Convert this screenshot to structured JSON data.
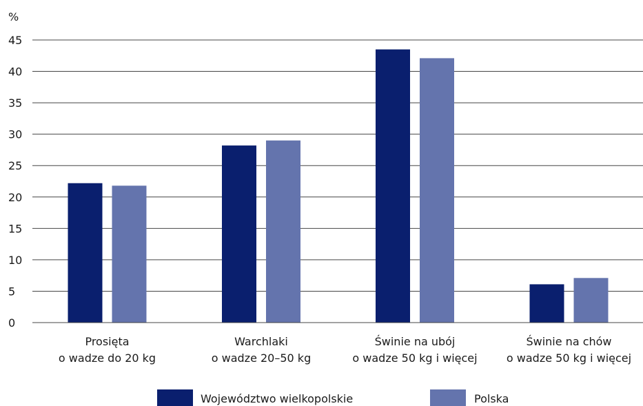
{
  "chart_data": {
    "type": "bar",
    "ylabel": "%",
    "ylim": [
      0,
      45
    ],
    "yticks": [
      0,
      5,
      10,
      15,
      20,
      25,
      30,
      35,
      40,
      45
    ],
    "grid": true,
    "legend_position": "bottom",
    "categories": [
      [
        "Prosięta",
        "o wadze do 20 kg"
      ],
      [
        "Warchlaki",
        "o wadze 20–50 kg"
      ],
      [
        "Świnie na ubój",
        "o wadze 50 kg i więcej"
      ],
      [
        "Świnie na chów",
        "o wadze 50 kg i więcej"
      ]
    ],
    "series": [
      {
        "name": "Województwo wielkopolskie",
        "color": "#0a1f6e",
        "values": [
          22.2,
          28.2,
          43.5,
          6.1
        ]
      },
      {
        "name": "Polska",
        "color": "#6474ad",
        "values": [
          21.8,
          29.0,
          42.1,
          7.1
        ]
      }
    ]
  }
}
